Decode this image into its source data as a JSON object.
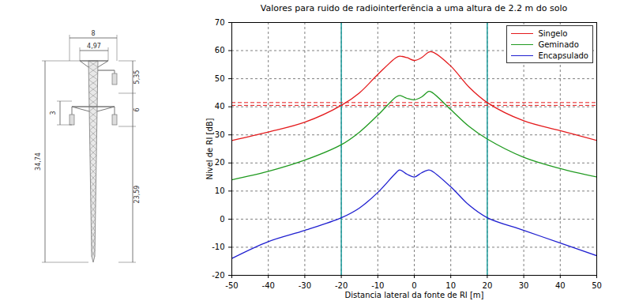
{
  "chart_data": {
    "type": "line",
    "title": "Valores para ruido de radiointerferência a uma altura de 2.2 m do solo",
    "x_label": "Distancia lateral da fonte de RI [m]",
    "y_label": "Nivel de RI [dB]",
    "x": [
      -50,
      -40,
      -30,
      -20,
      -15,
      -10,
      -5,
      -4,
      -2,
      0,
      2,
      4,
      5,
      10,
      15,
      20,
      30,
      40,
      50
    ],
    "series": [
      {
        "name": "Singelo",
        "color": "#e41a1c",
        "values": [
          28,
          31,
          34.5,
          40.5,
          45,
          51.5,
          57.5,
          58,
          57.5,
          56.5,
          57.5,
          59.5,
          59.5,
          54.5,
          47,
          41.5,
          35,
          31.5,
          28
        ]
      },
      {
        "name": "Geminado",
        "color": "#1f9a1f",
        "values": [
          14,
          17,
          21,
          26.5,
          31,
          37,
          43.5,
          44,
          43,
          42.5,
          43.5,
          45.5,
          45,
          39,
          33,
          28.5,
          22,
          18,
          15
        ]
      },
      {
        "name": "Encapsulado",
        "color": "#1f1fd0",
        "values": [
          -14,
          -8,
          -4,
          0.5,
          4,
          9.5,
          16.5,
          17.5,
          16,
          15,
          16.5,
          17.5,
          17,
          11.5,
          5,
          0.5,
          -4,
          -8.5,
          -13
        ]
      }
    ],
    "vlines": {
      "values": [
        -20,
        20
      ],
      "color": "#1a9a9a"
    },
    "hlines": {
      "values": [
        41.5,
        40.5
      ],
      "color": "#e41a1c",
      "line_style": "dashed"
    },
    "xlim": [
      -50,
      50
    ],
    "xticks": [
      -50,
      -40,
      -30,
      -20,
      -10,
      0,
      10,
      20,
      30,
      40,
      50
    ],
    "ylim": [
      -20,
      70
    ],
    "yticks": [
      -20,
      -10,
      0,
      10,
      20,
      30,
      40,
      50,
      60,
      70
    ],
    "grid": true,
    "legend": "top-right"
  },
  "tower": {
    "top_width": "8",
    "crossarm_width": "4,97",
    "upper_spacing": "5,35",
    "lower_spacing": "6",
    "insulator": "3",
    "total_height": "34,74",
    "lower_height": "23,59"
  }
}
